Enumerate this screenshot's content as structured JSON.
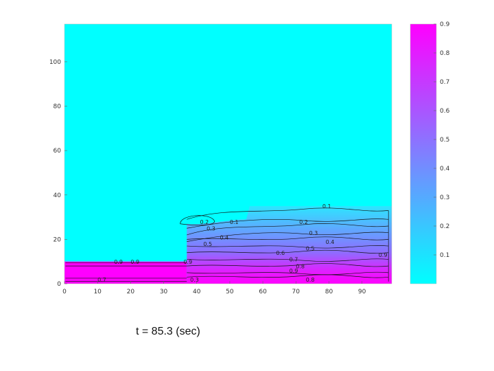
{
  "chart_data": {
    "type": "heatmap",
    "caption": "t = 85.3 (sec)",
    "xlim": [
      0,
      99
    ],
    "ylim": [
      0,
      117
    ],
    "x_ticks": [
      {
        "value": 0,
        "label": "0"
      },
      {
        "value": 10,
        "label": "10"
      },
      {
        "value": 20,
        "label": "20"
      },
      {
        "value": 30,
        "label": "30"
      },
      {
        "value": 40,
        "label": "40"
      },
      {
        "value": 50,
        "label": "50"
      },
      {
        "value": 60,
        "label": "60"
      },
      {
        "value": 70,
        "label": "70"
      },
      {
        "value": 80,
        "label": "80"
      },
      {
        "value": 90,
        "label": "90"
      }
    ],
    "y_ticks": [
      {
        "value": 0,
        "label": "0"
      },
      {
        "value": 20,
        "label": "20"
      },
      {
        "value": 40,
        "label": "40"
      },
      {
        "value": 60,
        "label": "60"
      },
      {
        "value": 80,
        "label": "80"
      },
      {
        "value": 100,
        "label": "100"
      }
    ],
    "colormap": {
      "low": "#00ffff",
      "high": "#ff00ff"
    },
    "colorbar": {
      "range": [
        0,
        0.9
      ],
      "ticks": [
        {
          "value": 0.1,
          "label": "0.1"
        },
        {
          "value": 0.2,
          "label": "0.2"
        },
        {
          "value": 0.3,
          "label": "0.3"
        },
        {
          "value": 0.4,
          "label": "0.4"
        },
        {
          "value": 0.5,
          "label": "0.5"
        },
        {
          "value": 0.6,
          "label": "0.6"
        },
        {
          "value": 0.7,
          "label": "0.7"
        },
        {
          "value": 0.8,
          "label": "0.8"
        },
        {
          "value": 0.9,
          "label": "0.9"
        }
      ]
    },
    "regions": [
      {
        "shape": "step_block",
        "x_range": [
          0,
          37
        ],
        "y_range": [
          0,
          10
        ],
        "value": 0.9
      },
      {
        "shape": "gradient_column",
        "x_range": [
          37,
          99
        ],
        "y_top": 35,
        "value_top": 0.0,
        "value_bottom": 0.9
      }
    ],
    "contour_labels": [
      {
        "text": "0.1",
        "x": 78,
        "y": 34
      },
      {
        "text": "0.1",
        "x": 50,
        "y": 27
      },
      {
        "text": "0.2",
        "x": 41,
        "y": 27
      },
      {
        "text": "0.2",
        "x": 71,
        "y": 27
      },
      {
        "text": "0.3",
        "x": 43,
        "y": 24
      },
      {
        "text": "0.3",
        "x": 74,
        "y": 22
      },
      {
        "text": "0.4",
        "x": 47,
        "y": 20
      },
      {
        "text": "0.4",
        "x": 79,
        "y": 18
      },
      {
        "text": "0.5",
        "x": 42,
        "y": 17
      },
      {
        "text": "0.5",
        "x": 73,
        "y": 15
      },
      {
        "text": "0.6",
        "x": 64,
        "y": 13
      },
      {
        "text": "0.7",
        "x": 68,
        "y": 10
      },
      {
        "text": "0.8",
        "x": 70,
        "y": 7
      },
      {
        "text": "0.9",
        "x": 68,
        "y": 5
      },
      {
        "text": "0.9",
        "x": 95,
        "y": 12
      },
      {
        "text": "0.9",
        "x": 20,
        "y": 9
      },
      {
        "text": "0.9",
        "x": 15,
        "y": 9
      },
      {
        "text": "0.9",
        "x": 36,
        "y": 9
      },
      {
        "text": "0.7",
        "x": 10,
        "y": 1
      },
      {
        "text": "0.3",
        "x": 38,
        "y": 1
      },
      {
        "text": "0.8",
        "x": 73,
        "y": 1
      }
    ]
  }
}
